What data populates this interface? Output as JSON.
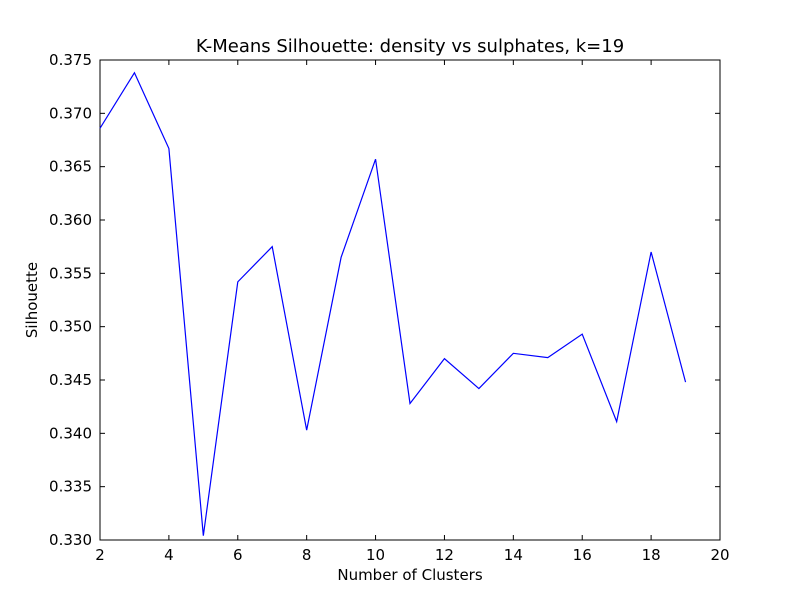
{
  "chart_data": {
    "type": "line",
    "title": "K-Means Silhouette: density vs sulphates, k=19",
    "xlabel": "Number of Clusters",
    "ylabel": "Silhouette",
    "xlim": [
      2,
      20
    ],
    "ylim": [
      0.33,
      0.375
    ],
    "xticks": [
      "2",
      "4",
      "6",
      "8",
      "10",
      "12",
      "14",
      "16",
      "18",
      "20"
    ],
    "yticks": [
      "0.330",
      "0.335",
      "0.340",
      "0.345",
      "0.350",
      "0.355",
      "0.360",
      "0.365",
      "0.370",
      "0.375"
    ],
    "grid": false,
    "series": [
      {
        "color": "#0000ff",
        "x": [
          2,
          3,
          4,
          5,
          6,
          7,
          8,
          9,
          10,
          11,
          12,
          13,
          14,
          15,
          16,
          17,
          18,
          19
        ],
        "y": [
          0.3686,
          0.3738,
          0.3667,
          0.3304,
          0.3542,
          0.3575,
          0.3403,
          0.3565,
          0.3657,
          0.3428,
          0.347,
          0.3442,
          0.3475,
          0.3471,
          0.3493,
          0.3411,
          0.357,
          0.3448
        ]
      }
    ]
  }
}
